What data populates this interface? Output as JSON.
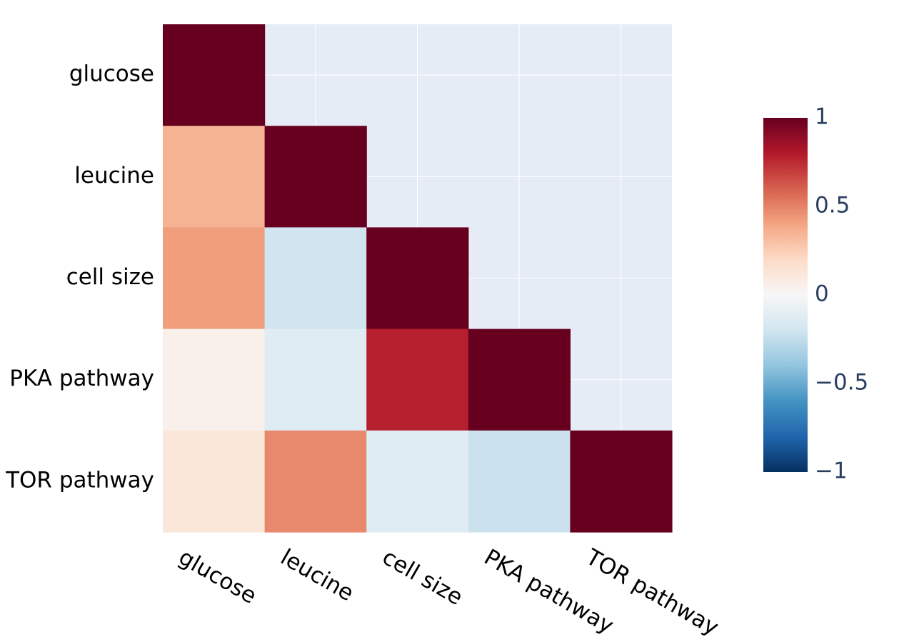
{
  "chart_data": {
    "type": "heatmap",
    "title": "",
    "xlabel": "",
    "ylabel": "",
    "variables": [
      "glucose",
      "leucine",
      "cell size",
      "PKA pathway",
      "TOR pathway"
    ],
    "x_categories": [
      "glucose",
      "leucine",
      "cell size",
      "PKA pathway",
      "TOR pathway"
    ],
    "y_categories": [
      "glucose",
      "leucine",
      "cell size",
      "PKA pathway",
      "TOR pathway"
    ],
    "matrix": [
      [
        1.0,
        null,
        null,
        null,
        null
      ],
      [
        0.35,
        1.0,
        null,
        null,
        null
      ],
      [
        0.42,
        -0.2,
        1.0,
        null,
        null
      ],
      [
        0.05,
        -0.12,
        0.78,
        1.0,
        null
      ],
      [
        0.12,
        0.48,
        -0.12,
        -0.22,
        1.0
      ]
    ],
    "masked": "upper triangle (empty)",
    "colorscale": "RdBu (reversed)",
    "colorscale_stops": [
      "#053061",
      "#2166ac",
      "#4393c3",
      "#92c5de",
      "#d1e5f0",
      "#f7f7f7",
      "#fddbc7",
      "#f4a582",
      "#d6604d",
      "#b2182b",
      "#67001f"
    ],
    "zlim": [
      -1,
      1
    ],
    "colorbar": {
      "ticks": [
        1,
        0.5,
        0,
        -0.5,
        -1
      ],
      "tick_labels": [
        "1",
        "0.5",
        "0",
        "−0.5",
        "−1"
      ]
    },
    "grid": true,
    "plot_background": "#e5ecf6",
    "gridline_color": "#ffffff",
    "x_tick_angle": 30
  }
}
